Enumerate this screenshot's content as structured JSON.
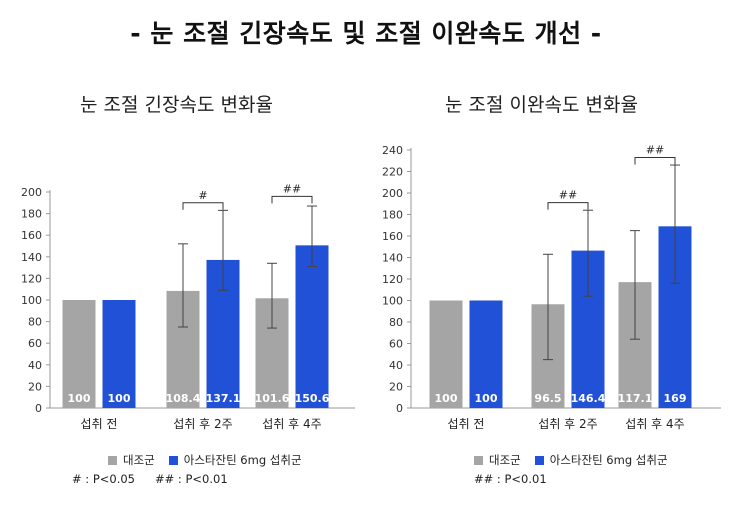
{
  "main_title": "- 눈 조절 긴장속도 및 조절 이완속도 개선 -",
  "colors": {
    "control": "#a5a5a5",
    "treatment": "#2151d6",
    "error": "#444444",
    "axis": "#999999"
  },
  "legend": {
    "control": "대조군",
    "treatment": "아스타잔틴 6mg 섭취군"
  },
  "chart_data": [
    {
      "type": "bar",
      "title": "눈 조절 긴장속도 변화율",
      "categories": [
        "섭취 전",
        "섭취 후 2주",
        "섭취 후 4주"
      ],
      "ylim": [
        0,
        200
      ],
      "yticks": [
        0,
        20,
        40,
        60,
        80,
        100,
        120,
        140,
        160,
        180,
        200
      ],
      "series": [
        {
          "name": "대조군",
          "values": [
            100,
            108.4,
            101.6
          ],
          "value_labels": [
            "100",
            "108.4",
            "101.6"
          ],
          "error_low": [
            null,
            75,
            74
          ],
          "error_high": [
            null,
            152,
            134
          ]
        },
        {
          "name": "아스타잔틴 6mg 섭취군",
          "values": [
            100,
            137.1,
            150.6
          ],
          "value_labels": [
            "100",
            "137.1",
            "150.6"
          ],
          "error_low": [
            null,
            109,
            131
          ],
          "error_high": [
            null,
            183,
            187
          ]
        }
      ],
      "significance": [
        {
          "category": 1,
          "label": "#",
          "y": 190
        },
        {
          "category": 2,
          "label": "##",
          "y": 196
        }
      ],
      "footnote": [
        "# : P<0.05",
        "## : P<0.01"
      ]
    },
    {
      "type": "bar",
      "title": "눈 조절 이완속도 변화율",
      "categories": [
        "섭취 전",
        "섭취 후 2주",
        "섭취 후 4주"
      ],
      "ylim": [
        0,
        240
      ],
      "yticks": [
        0,
        20,
        40,
        60,
        80,
        100,
        120,
        140,
        160,
        180,
        200,
        220,
        240
      ],
      "series": [
        {
          "name": "대조군",
          "values": [
            100,
            96.5,
            117.1
          ],
          "value_labels": [
            "100",
            "96.5",
            "117.1"
          ],
          "error_low": [
            null,
            45,
            64
          ],
          "error_high": [
            null,
            143,
            165
          ]
        },
        {
          "name": "아스타잔틴 6mg 섭취군",
          "values": [
            100,
            146.4,
            169
          ],
          "value_labels": [
            "100",
            "146.4",
            "169"
          ],
          "error_low": [
            null,
            104,
            116
          ],
          "error_high": [
            null,
            184,
            226
          ]
        }
      ],
      "significance": [
        {
          "category": 1,
          "label": "##",
          "y": 191
        },
        {
          "category": 2,
          "label": "##",
          "y": 233
        }
      ],
      "footnote": [
        "## : P<0.01"
      ]
    }
  ]
}
